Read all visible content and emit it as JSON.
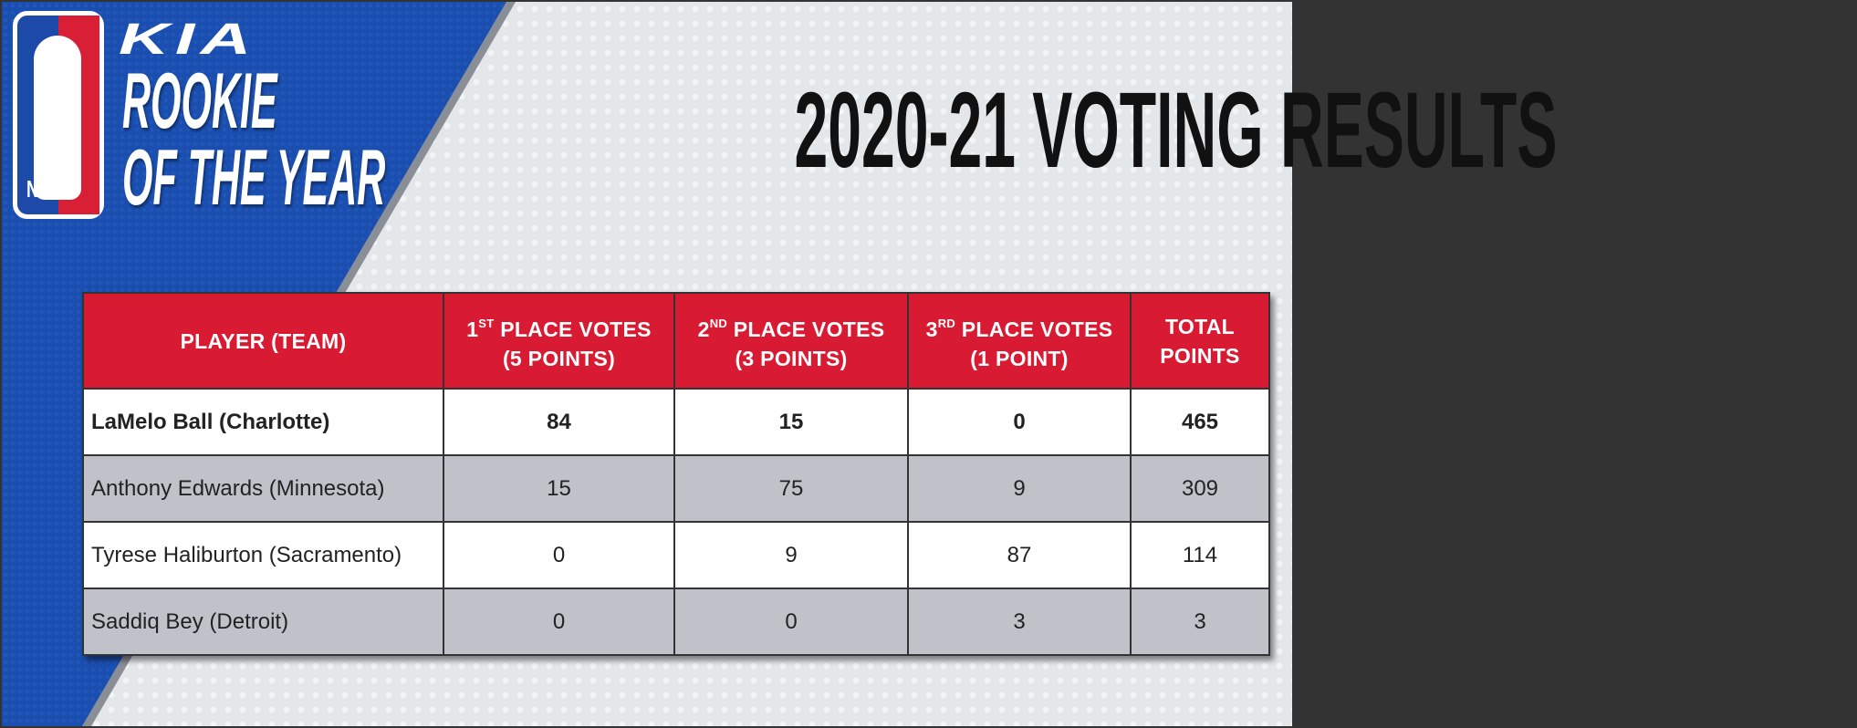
{
  "branding": {
    "league_logo": "NBA",
    "sponsor": "KIA",
    "award_line1": "ROOKIE",
    "award_line2": "OF THE YEAR"
  },
  "title": "2020-21 VOTING RESULTS",
  "colors": {
    "header_red": "#d91a33",
    "blue": "#1a4fb0",
    "row_gray": "#bfc3c9"
  },
  "table": {
    "headers": [
      {
        "line1": "PLAYER (TEAM)"
      },
      {
        "num": "1",
        "sup": "ST",
        "line1": " PLACE VOTES",
        "line2": "(5 POINTS)"
      },
      {
        "num": "2",
        "sup": "ND",
        "line1": " PLACE VOTES",
        "line2": "(3 POINTS)"
      },
      {
        "num": "3",
        "sup": "RD",
        "line1": " PLACE VOTES",
        "line2": "(1 POINT)"
      },
      {
        "line1": "TOTAL",
        "line2": "POINTS"
      }
    ],
    "rows": [
      {
        "player": "LaMelo Ball (Charlotte)",
        "first": "84",
        "second": "15",
        "third": "0",
        "total": "465"
      },
      {
        "player": "Anthony Edwards (Minnesota)",
        "first": "15",
        "second": "75",
        "third": "9",
        "total": "309"
      },
      {
        "player": "Tyrese Haliburton (Sacramento)",
        "first": "0",
        "second": "9",
        "third": "87",
        "total": "114"
      },
      {
        "player": "Saddiq Bey (Detroit)",
        "first": "0",
        "second": "0",
        "third": "3",
        "total": "3"
      }
    ]
  }
}
